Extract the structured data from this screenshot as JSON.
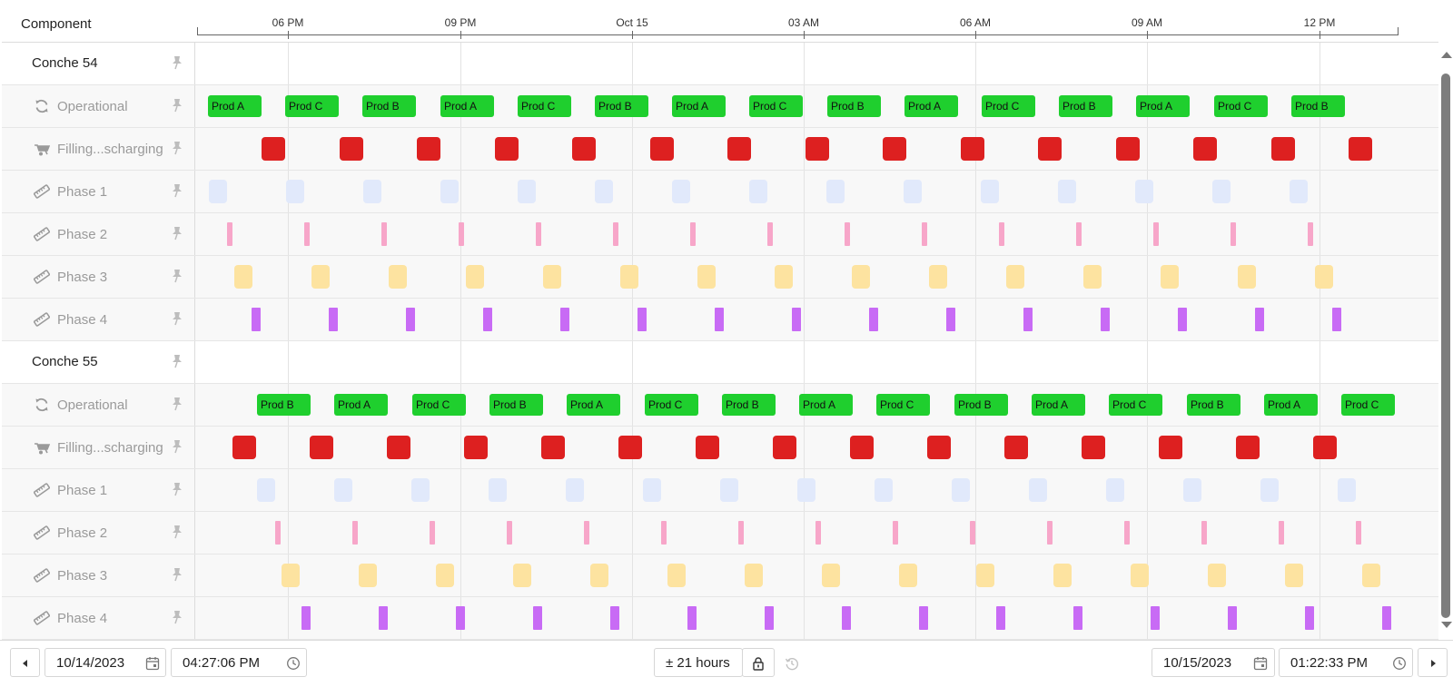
{
  "header": {
    "component_label": "Component",
    "axis_labels": [
      "06 PM",
      "09 PM",
      "Oct 15",
      "03 AM",
      "06 AM",
      "09 AM",
      "12 PM"
    ]
  },
  "groups": [
    {
      "name": "Conche 54",
      "rows": [
        {
          "label": "Operational",
          "icon": "sync-icon",
          "kind": "op",
          "items": [
            "Prod A",
            "Prod C",
            "Prod B",
            "Prod A",
            "Prod C",
            "Prod B",
            "Prod A",
            "Prod C",
            "Prod B",
            "Prod A",
            "Prod C",
            "Prod B",
            "Prod A",
            "Prod C",
            "Prod B"
          ]
        },
        {
          "label": "Filling...scharging",
          "icon": "wheelbarrow-icon",
          "kind": "fill"
        },
        {
          "label": "Phase 1",
          "icon": "ruler-icon",
          "kind": "p1"
        },
        {
          "label": "Phase 2",
          "icon": "ruler-icon",
          "kind": "p2"
        },
        {
          "label": "Phase 3",
          "icon": "ruler-icon",
          "kind": "p3"
        },
        {
          "label": "Phase 4",
          "icon": "ruler-icon",
          "kind": "p4"
        }
      ]
    },
    {
      "name": "Conche 55",
      "rows": [
        {
          "label": "Operational",
          "icon": "sync-icon",
          "kind": "op",
          "items": [
            "Prod B",
            "Prod A",
            "Prod C",
            "Prod B",
            "Prod A",
            "Prod C",
            "Prod B",
            "Prod A",
            "Prod C",
            "Prod B",
            "Prod A",
            "Prod C",
            "Prod B",
            "Prod A",
            "Prod C"
          ]
        },
        {
          "label": "Filling...scharging",
          "icon": "wheelbarrow-icon",
          "kind": "fill"
        },
        {
          "label": "Phase 1",
          "icon": "ruler-icon",
          "kind": "p1"
        },
        {
          "label": "Phase 2",
          "icon": "ruler-icon",
          "kind": "p2"
        },
        {
          "label": "Phase 3",
          "icon": "ruler-icon",
          "kind": "p3"
        },
        {
          "label": "Phase 4",
          "icon": "ruler-icon",
          "kind": "p4"
        }
      ]
    }
  ],
  "colors": {
    "operational": "#1fcf2e",
    "filling": "#dd2020",
    "phase1": "#e1e9fb",
    "phase2": "#f7a6c9",
    "phase3": "#fde3a0",
    "phase4": "#c86bf5"
  },
  "footer": {
    "start_date": "10/14/2023",
    "start_time": "04:27:06 PM",
    "range": "± 21 hours",
    "end_date": "10/15/2023",
    "end_time": "01:22:33 PM"
  }
}
